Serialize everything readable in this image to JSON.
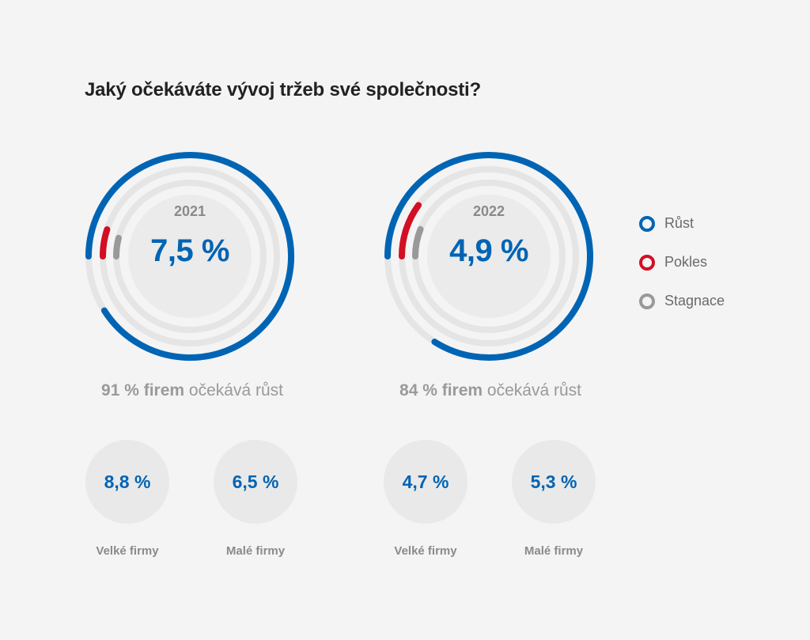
{
  "title": "Jaký očekáváte vývoj tržeb své společnosti?",
  "colors": {
    "growth": "#0064b4",
    "decline": "#d20f23",
    "stagnation": "#999999",
    "track": "#e5e5e5",
    "inner": "#ebebeb"
  },
  "legend": [
    {
      "label": "Růst",
      "color": "#0064b4"
    },
    {
      "label": "Pokles",
      "color": "#d20f23"
    },
    {
      "label": "Stagnace",
      "color": "#999999"
    }
  ],
  "panels": [
    {
      "year": "2021",
      "value": "7,5 %",
      "caption_bold": "91 % firem",
      "caption_rest": " očekává růst",
      "small": [
        {
          "value": "8,8 %",
          "label": "Velké firmy"
        },
        {
          "value": "6,5 %",
          "label": "Malé firmy"
        }
      ]
    },
    {
      "year": "2022",
      "value": "4,9 %",
      "caption_bold": "84 % firem",
      "caption_rest": " očekává růst",
      "small": [
        {
          "value": "4,7 %",
          "label": "Velké firmy"
        },
        {
          "value": "5,3 %",
          "label": "Malé firmy"
        }
      ]
    }
  ],
  "chart_data": [
    {
      "type": "pie",
      "title": "2021",
      "categories": [
        "Růst",
        "Pokles",
        "Stagnace"
      ],
      "values": [
        91,
        5,
        4
      ]
    },
    {
      "type": "pie",
      "title": "2022",
      "categories": [
        "Růst",
        "Pokles",
        "Stagnace"
      ],
      "values": [
        84,
        10,
        6
      ]
    }
  ]
}
